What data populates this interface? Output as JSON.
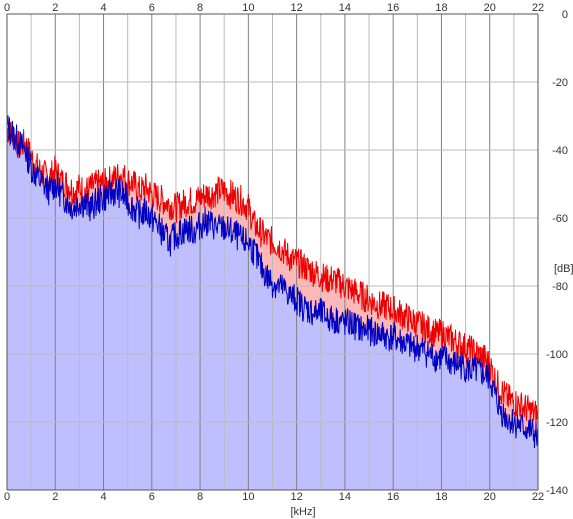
{
  "chart_data": {
    "type": "area",
    "x_unit": "[kHz]",
    "y_unit": "[dB]",
    "xlim": [
      0,
      22
    ],
    "ylim": [
      -140,
      0
    ],
    "x_ticks": [
      "0",
      "2",
      "4",
      "6",
      "8",
      "10",
      "12",
      "14",
      "16",
      "18",
      "20",
      "22"
    ],
    "y_ticks": [
      "0",
      "-20",
      "-40",
      "-60",
      "-80",
      "-100",
      "-120",
      "-140"
    ],
    "grid": true,
    "colors": {
      "background": "#ffffff",
      "grid_major": "#808080",
      "grid_minor": "#bbbbbb",
      "fill": "#bfbfff",
      "fill_red": "#ffb8b8",
      "series_blue": "#0000c0",
      "series_red": "#ee0000"
    },
    "series": [
      {
        "color": "red",
        "x": [
          0,
          0.25,
          0.5,
          0.75,
          1,
          1.25,
          1.5,
          1.75,
          2,
          2.25,
          2.5,
          2.75,
          3,
          3.25,
          3.5,
          3.75,
          4,
          4.25,
          4.5,
          4.75,
          5,
          5.25,
          5.5,
          5.75,
          6,
          6.25,
          6.5,
          6.75,
          7,
          7.25,
          7.5,
          7.75,
          8,
          8.25,
          8.5,
          8.75,
          9,
          9.25,
          9.5,
          9.75,
          10,
          10.25,
          10.5,
          10.75,
          11,
          11.25,
          11.5,
          11.75,
          12,
          12.25,
          12.5,
          12.75,
          13,
          13.25,
          13.5,
          13.75,
          14,
          14.25,
          14.5,
          14.75,
          15,
          15.25,
          15.5,
          15.75,
          16,
          16.25,
          16.5,
          16.75,
          17,
          17.25,
          17.5,
          17.75,
          18,
          18.25,
          18.5,
          18.75,
          19,
          19.25,
          19.5,
          19.75,
          20,
          20.25,
          20.5,
          20.75,
          21,
          21.25,
          21.5,
          21.75,
          22
        ],
        "y": [
          -34,
          -36,
          -39,
          -38,
          -42,
          -45,
          -47,
          -48,
          -46,
          -49,
          -50,
          -52,
          -51,
          -52,
          -51,
          -50,
          -50,
          -49,
          -48,
          -47,
          -49,
          -50,
          -52,
          -51,
          -53,
          -54,
          -55,
          -56,
          -57,
          -56,
          -55,
          -55,
          -54,
          -53,
          -53,
          -52,
          -52,
          -53,
          -54,
          -55,
          -57,
          -62,
          -64,
          -66,
          -67,
          -68,
          -70,
          -72,
          -73,
          -74,
          -75,
          -76,
          -77,
          -78,
          -78,
          -79,
          -80,
          -81,
          -82,
          -83,
          -84,
          -85,
          -86,
          -86,
          -87,
          -88,
          -89,
          -90,
          -91,
          -92,
          -93,
          -94,
          -94,
          -95,
          -96,
          -97,
          -98,
          -99,
          -100,
          -101,
          -103,
          -108,
          -111,
          -113,
          -114,
          -115,
          -116,
          -117,
          -118
        ]
      },
      {
        "color": "blue",
        "x": [
          0,
          0.25,
          0.5,
          0.75,
          1,
          1.25,
          1.5,
          1.75,
          2,
          2.25,
          2.5,
          2.75,
          3,
          3.25,
          3.5,
          3.75,
          4,
          4.25,
          4.5,
          4.75,
          5,
          5.25,
          5.5,
          5.75,
          6,
          6.25,
          6.5,
          6.75,
          7,
          7.25,
          7.5,
          7.75,
          8,
          8.25,
          8.5,
          8.75,
          9,
          9.25,
          9.5,
          9.75,
          10,
          10.25,
          10.5,
          10.75,
          11,
          11.25,
          11.5,
          11.75,
          12,
          12.25,
          12.5,
          12.75,
          13,
          13.25,
          13.5,
          13.75,
          14,
          14.25,
          14.5,
          14.75,
          15,
          15.25,
          15.5,
          15.75,
          16,
          16.25,
          16.5,
          16.75,
          17,
          17.25,
          17.5,
          17.75,
          18,
          18.25,
          18.5,
          18.75,
          19,
          19.25,
          19.5,
          19.75,
          20,
          20.25,
          20.5,
          20.75,
          21,
          21.25,
          21.5,
          21.75,
          22
        ],
        "y": [
          -33,
          -35,
          -38,
          -40,
          -45,
          -48,
          -50,
          -52,
          -50,
          -53,
          -55,
          -57,
          -55,
          -56,
          -57,
          -55,
          -54,
          -53,
          -52,
          -53,
          -55,
          -57,
          -59,
          -58,
          -60,
          -62,
          -65,
          -67,
          -65,
          -64,
          -63,
          -64,
          -62,
          -61,
          -62,
          -63,
          -63,
          -64,
          -65,
          -67,
          -67,
          -70,
          -74,
          -77,
          -79,
          -80,
          -81,
          -83,
          -84,
          -86,
          -87,
          -88,
          -88,
          -89,
          -90,
          -90,
          -91,
          -91,
          -92,
          -93,
          -93,
          -94,
          -94,
          -95,
          -95,
          -96,
          -97,
          -98,
          -98,
          -99,
          -100,
          -101,
          -101,
          -102,
          -103,
          -103,
          -104,
          -105,
          -105,
          -106,
          -107,
          -113,
          -117,
          -119,
          -120,
          -121,
          -122,
          -123,
          -125
        ]
      }
    ]
  }
}
